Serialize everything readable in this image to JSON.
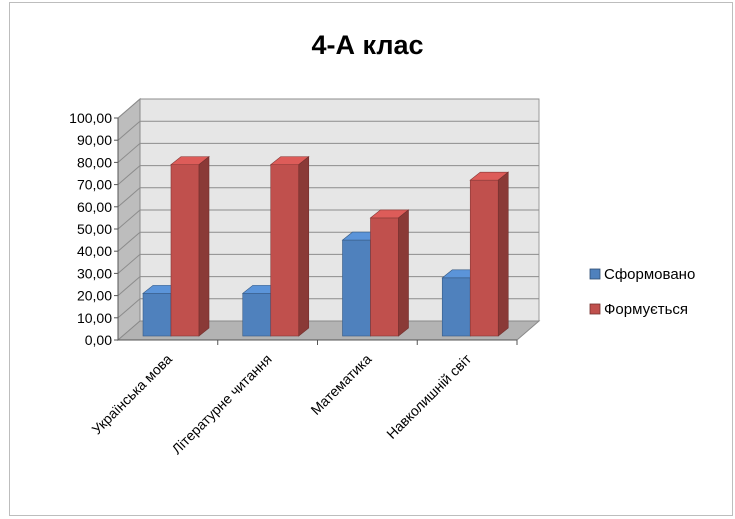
{
  "chart_data": {
    "type": "bar",
    "title": "4-А клас",
    "xlabel": "",
    "ylabel": "",
    "ylim": [
      0,
      100
    ],
    "ytick_step": 10,
    "ytick_labels": [
      "0,00",
      "10,00",
      "20,00",
      "30,00",
      "40,00",
      "50,00",
      "60,00",
      "70,00",
      "80,00",
      "90,00",
      "100,00"
    ],
    "categories": [
      "Українська мова",
      "Літературне читання",
      "Математика",
      "Навколишній світ"
    ],
    "series": [
      {
        "name": "Сформовано",
        "values": [
          21,
          21,
          45,
          28
        ],
        "color": "#4f81bd"
      },
      {
        "name": "Формується",
        "values": [
          79,
          79,
          55,
          72
        ],
        "color": "#c0504d"
      }
    ],
    "grid": true,
    "legend_position": "right",
    "style": "3d-clustered-column"
  }
}
